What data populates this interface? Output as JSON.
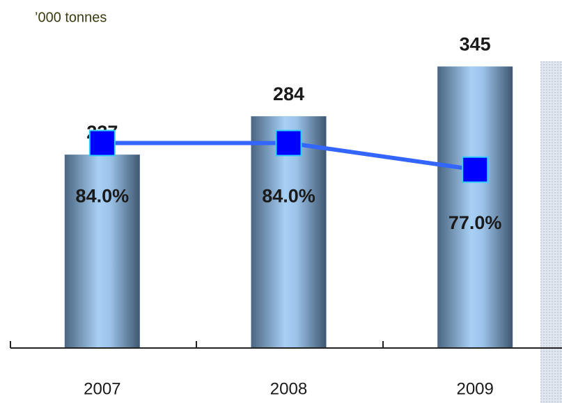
{
  "chart_data": {
    "type": "bar-line",
    "y_label": "’000 tonnes",
    "categories": [
      "2007",
      "2008",
      "2009"
    ],
    "series": [
      {
        "type": "bar",
        "color": "#9ec6ee",
        "values": [
          237,
          284,
          345
        ]
      },
      {
        "type": "line",
        "axis": "y2",
        "color": "#3366ff",
        "marker_color": "#0000ff",
        "values": [
          84.0,
          84.0,
          77.0
        ],
        "value_labels": [
          "84.0%",
          "84.0%",
          "77.0%"
        ]
      }
    ],
    "ylim": [
      0,
      400
    ],
    "y2lim": [
      30,
      116
    ]
  }
}
